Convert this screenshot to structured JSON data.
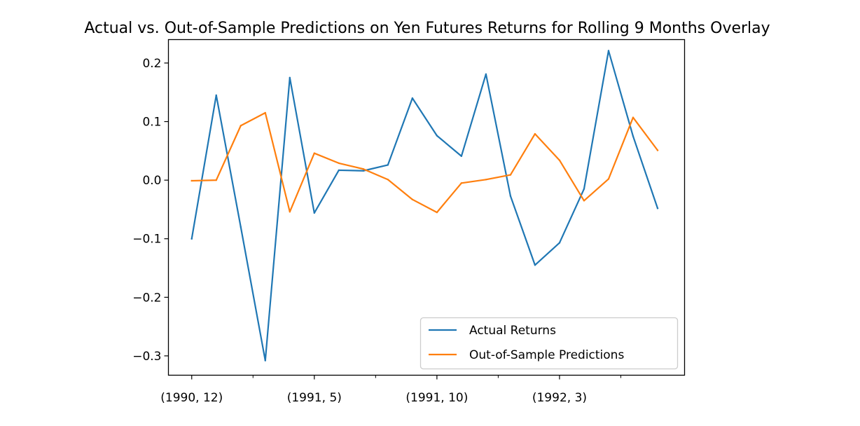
{
  "chart_data": {
    "type": "line",
    "title": "Actual vs. Out-of-Sample Predictions on Yen Futures Returns for Rolling 9 Months Overlay",
    "xlabel": "",
    "ylabel": "",
    "x": [
      "(1990, 12)",
      "(1991, 1)",
      "(1991, 2)",
      "(1991, 3)",
      "(1991, 4)",
      "(1991, 5)",
      "(1991, 6)",
      "(1991, 7)",
      "(1991, 8)",
      "(1991, 9)",
      "(1991, 10)",
      "(1991, 11)",
      "(1991, 12)",
      "(1992, 1)",
      "(1992, 2)",
      "(1992, 3)",
      "(1992, 4)",
      "(1992, 5)",
      "(1992, 6)",
      "(1992, 7)"
    ],
    "x_tick_labels": [
      "(1990, 12)",
      "(1991, 5)",
      "(1991, 10)",
      "(1992, 3)"
    ],
    "major_tick_indices": [
      0,
      5,
      10,
      15
    ],
    "minor_tick_indices": [
      2.5,
      7.5,
      12.5,
      17.5
    ],
    "xlim": [
      -0.95,
      20.1
    ],
    "ylim": [
      -0.333,
      0.24
    ],
    "y_ticks": [
      -0.3,
      -0.2,
      -0.1,
      0.0,
      0.1,
      0.2
    ],
    "y_tick_labels": [
      "−0.3",
      "−0.2",
      "−0.1",
      "0.0",
      "0.1",
      "0.2"
    ],
    "series": [
      {
        "name": "Actual Returns",
        "color": "#1f77b4",
        "values": [
          -0.1,
          0.145,
          -0.08,
          -0.308,
          0.175,
          -0.056,
          0.017,
          0.016,
          0.026,
          0.14,
          0.076,
          0.041,
          0.181,
          -0.027,
          -0.145,
          -0.107,
          -0.015,
          0.221,
          0.075,
          -0.048
        ]
      },
      {
        "name": "Out-of-Sample Predictions",
        "color": "#ff7f0e",
        "values": [
          -0.001,
          0.0,
          0.093,
          0.115,
          -0.054,
          0.046,
          0.029,
          0.019,
          0.001,
          -0.033,
          -0.055,
          -0.005,
          0.001,
          0.009,
          0.079,
          0.034,
          -0.035,
          0.002,
          0.107,
          0.051
        ]
      }
    ],
    "grid": false,
    "legend_position": "lower-right"
  }
}
